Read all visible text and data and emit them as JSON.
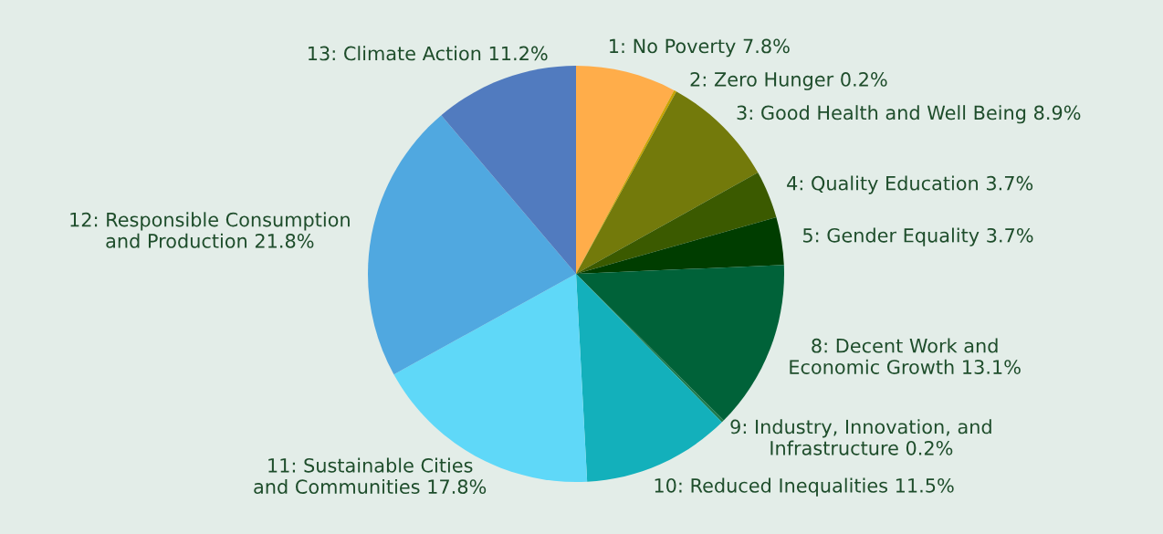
{
  "chart_data": {
    "type": "pie",
    "categories": [
      "1: No Poverty",
      "2: Zero Hunger",
      "3: Good Health and Well Being",
      "4: Quality Education",
      "5: Gender Equality",
      "8: Decent Work and\nEconomic Growth",
      "9: Industry, Innovation, and\nInfrastructure",
      "10: Reduced Inequalities",
      "11: Sustainable Cities\nand Communities",
      "12: Responsible Consumption\nand Production",
      "13: Climate Action"
    ],
    "values": [
      7.8,
      0.2,
      8.9,
      3.7,
      3.7,
      13.1,
      0.2,
      11.5,
      17.8,
      21.8,
      11.2
    ],
    "value_labels": [
      "7.8%",
      "0.2%",
      "8.9%",
      "3.7%",
      "3.7%",
      "13.1%",
      "0.2%",
      "11.5%",
      "17.8%",
      "21.8%",
      "11.2%"
    ],
    "colors": [
      "#ffad4a",
      "#c9a300",
      "#737a0b",
      "#3b5a00",
      "#003d00",
      "#006239",
      "#1f7a4d",
      "#13b0bb",
      "#5fd8f8",
      "#50a8e0",
      "#517bbf"
    ]
  }
}
